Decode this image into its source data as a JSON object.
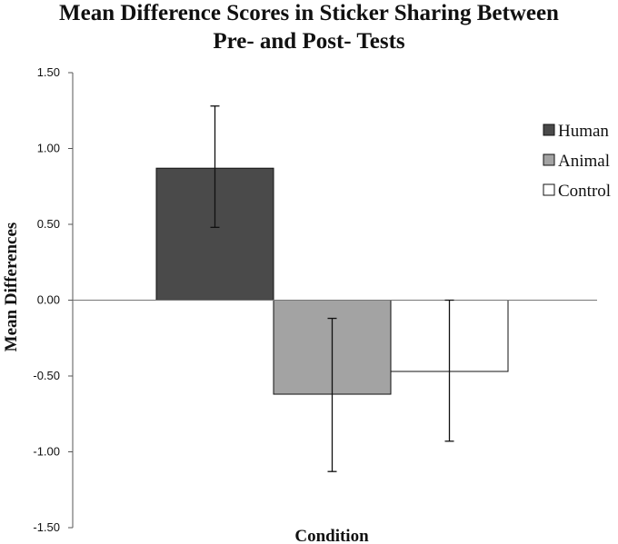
{
  "chart_data": {
    "type": "bar",
    "title": "Mean Difference Scores in Sticker Sharing Between Pre- and Post- Tests",
    "title_lines": [
      "Mean Difference Scores in Sticker Sharing Between",
      "Pre- and Post- Tests"
    ],
    "xlabel": "Condition",
    "ylabel": "Mean Differences",
    "ylim": [
      -1.5,
      1.5
    ],
    "yticks": [
      1.5,
      1.0,
      0.5,
      0.0,
      -0.5,
      -1.0,
      -1.5
    ],
    "ytick_labels": [
      "1.50",
      "1.00",
      "0.50",
      "0.00",
      "-0.50",
      "-1.00",
      "-1.50"
    ],
    "grid": false,
    "legend_position": "top-right",
    "series": [
      {
        "name": "Human",
        "value": 0.87,
        "error_low": 0.48,
        "error_high": 1.28,
        "color": "#4a4a4a"
      },
      {
        "name": "Animal",
        "value": -0.62,
        "error_low": -1.13,
        "error_high": -0.12,
        "color": "#a3a3a3"
      },
      {
        "name": "Control",
        "value": -0.47,
        "error_low": -0.93,
        "error_high": 0.0,
        "color": "#ffffff"
      }
    ]
  }
}
